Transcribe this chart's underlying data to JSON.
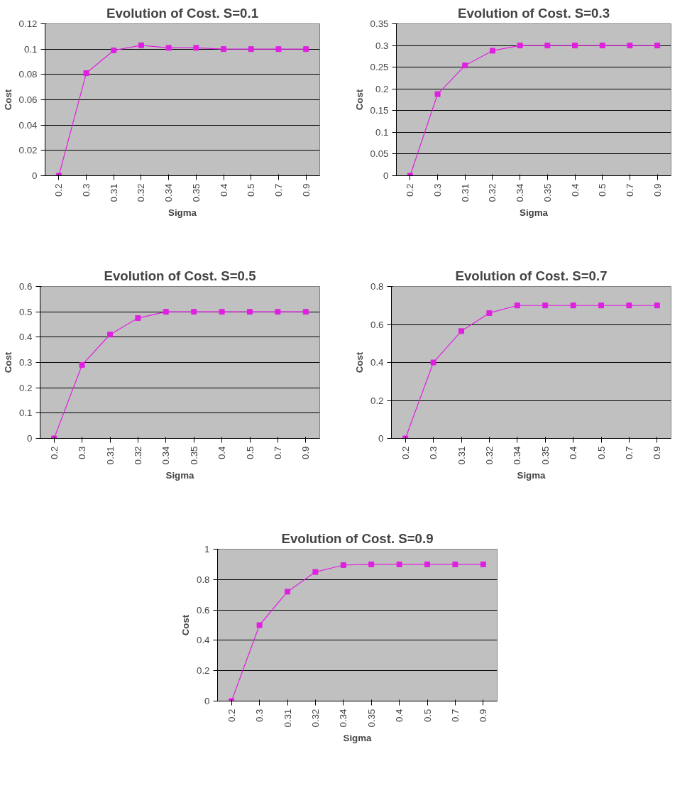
{
  "chart_data": [
    {
      "type": "line",
      "title": "Evolution of Cost. S=0.1",
      "xlabel": "Sigma",
      "ylabel": "Cost",
      "categories": [
        "0.2",
        "0.3",
        "0.31",
        "0.32",
        "0.34",
        "0.35",
        "0.4",
        "0.5",
        "0.7",
        "0.9"
      ],
      "series": [
        {
          "color": "#e020e0",
          "values": [
            0,
            0.081,
            0.099,
            0.103,
            0.101,
            0.101,
            0.1,
            0.1,
            0.1,
            0.1
          ]
        }
      ],
      "ylim": [
        0,
        0.12
      ],
      "yticks": [
        0,
        0.02,
        0.04,
        0.06,
        0.08,
        0.1,
        0.12
      ],
      "grid": "y",
      "marker": "square",
      "line_style": "solid"
    },
    {
      "type": "line",
      "title": "Evolution of Cost. S=0.3",
      "xlabel": "Sigma",
      "ylabel": "Cost",
      "categories": [
        "0.2",
        "0.3",
        "0.31",
        "0.32",
        "0.34",
        "0.35",
        "0.4",
        "0.5",
        "0.7",
        "0.9"
      ],
      "series": [
        {
          "color": "#e020e0",
          "values": [
            0,
            0.188,
            0.254,
            0.288,
            0.3,
            0.3,
            0.3,
            0.3,
            0.3,
            0.3
          ]
        }
      ],
      "ylim": [
        0,
        0.35
      ],
      "yticks": [
        0,
        0.05,
        0.1,
        0.15,
        0.2,
        0.25,
        0.3,
        0.35
      ],
      "grid": "y",
      "marker": "square",
      "line_style": "solid"
    },
    {
      "type": "line",
      "title": "Evolution of Cost. S=0.5",
      "xlabel": "Sigma",
      "ylabel": "Cost",
      "categories": [
        "0.2",
        "0.3",
        "0.31",
        "0.32",
        "0.34",
        "0.35",
        "0.4",
        "0.5",
        "0.7",
        "0.9"
      ],
      "series": [
        {
          "color": "#e020e0",
          "values": [
            0,
            0.29,
            0.41,
            0.475,
            0.5,
            0.5,
            0.5,
            0.5,
            0.5,
            0.5
          ]
        }
      ],
      "ylim": [
        0,
        0.6
      ],
      "yticks": [
        0,
        0.1,
        0.2,
        0.3,
        0.4,
        0.5,
        0.6
      ],
      "grid": "y",
      "marker": "square",
      "line_style": "solid"
    },
    {
      "type": "line",
      "title": "Evolution of Cost. S=0.7",
      "xlabel": "Sigma",
      "ylabel": "Cost",
      "categories": [
        "0.2",
        "0.3",
        "0.31",
        "0.32",
        "0.34",
        "0.35",
        "0.4",
        "0.5",
        "0.7",
        "0.9"
      ],
      "series": [
        {
          "color": "#e020e0",
          "values": [
            0,
            0.4,
            0.565,
            0.66,
            0.7,
            0.7,
            0.7,
            0.7,
            0.7,
            0.7
          ]
        }
      ],
      "ylim": [
        0,
        0.8
      ],
      "yticks": [
        0,
        0.2,
        0.4,
        0.6,
        0.8
      ],
      "grid": "y",
      "marker": "square",
      "line_style": "solid"
    },
    {
      "type": "line",
      "title": "Evolution of Cost. S=0.9",
      "xlabel": "Sigma",
      "ylabel": "Cost",
      "categories": [
        "0.2",
        "0.3",
        "0.31",
        "0.32",
        "0.34",
        "0.35",
        "0.4",
        "0.5",
        "0.7",
        "0.9"
      ],
      "series": [
        {
          "color": "#e020e0",
          "values": [
            0,
            0.5,
            0.72,
            0.85,
            0.895,
            0.9,
            0.9,
            0.9,
            0.9,
            0.9
          ]
        }
      ],
      "ylim": [
        0,
        1
      ],
      "yticks": [
        0,
        0.2,
        0.4,
        0.6,
        0.8,
        1
      ],
      "grid": "y",
      "marker": "square",
      "line_style": "solid"
    }
  ]
}
